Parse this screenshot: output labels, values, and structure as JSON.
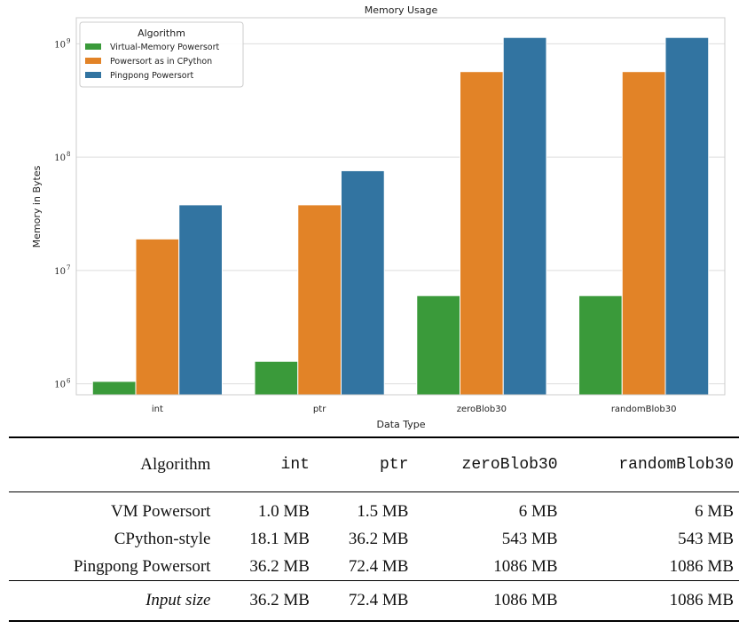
{
  "chart_data": {
    "type": "bar",
    "title": "Memory Usage",
    "xlabel": "Data Type",
    "ylabel": "Memory in Bytes",
    "yscale": "log",
    "ylim": [
      800000,
      1700000000
    ],
    "yticks": [
      1000000,
      10000000,
      100000000,
      1000000000
    ],
    "ytick_labels": [
      {
        "base": "10",
        "exp": "6"
      },
      {
        "base": "10",
        "exp": "7"
      },
      {
        "base": "10",
        "exp": "8"
      },
      {
        "base": "10",
        "exp": "9"
      }
    ],
    "categories": [
      "int",
      "ptr",
      "zeroBlob30",
      "randomBlob30"
    ],
    "legend_title": "Algorithm",
    "legend_position": "top-left",
    "grid": "y-major",
    "series": [
      {
        "name": "Virtual-Memory Powersort",
        "color": "#3a9a3a",
        "values": [
          1050000,
          1580000,
          6000000,
          6000000
        ]
      },
      {
        "name": "Powersort as in CPython",
        "color": "#e28327",
        "values": [
          18980000,
          37960000,
          569000000,
          569000000
        ]
      },
      {
        "name": "Pingpong Powersort",
        "color": "#3274a1",
        "values": [
          37960000,
          75920000,
          1139000000,
          1139000000
        ]
      }
    ]
  },
  "table": {
    "header": [
      "Algorithm",
      "int",
      "ptr",
      "zeroBlob30",
      "randomBlob30"
    ],
    "rows": [
      [
        "VM Powersort",
        "1.0 MB",
        "1.5 MB",
        "6 MB",
        "6 MB"
      ],
      [
        "CPython-style",
        "18.1 MB",
        "36.2 MB",
        "543 MB",
        "543 MB"
      ],
      [
        "Pingpong Powersort",
        "36.2 MB",
        "72.4 MB",
        "1086 MB",
        "1086 MB"
      ]
    ],
    "footer": [
      "Input size",
      "36.2 MB",
      "72.4 MB",
      "1086 MB",
      "1086 MB"
    ]
  }
}
